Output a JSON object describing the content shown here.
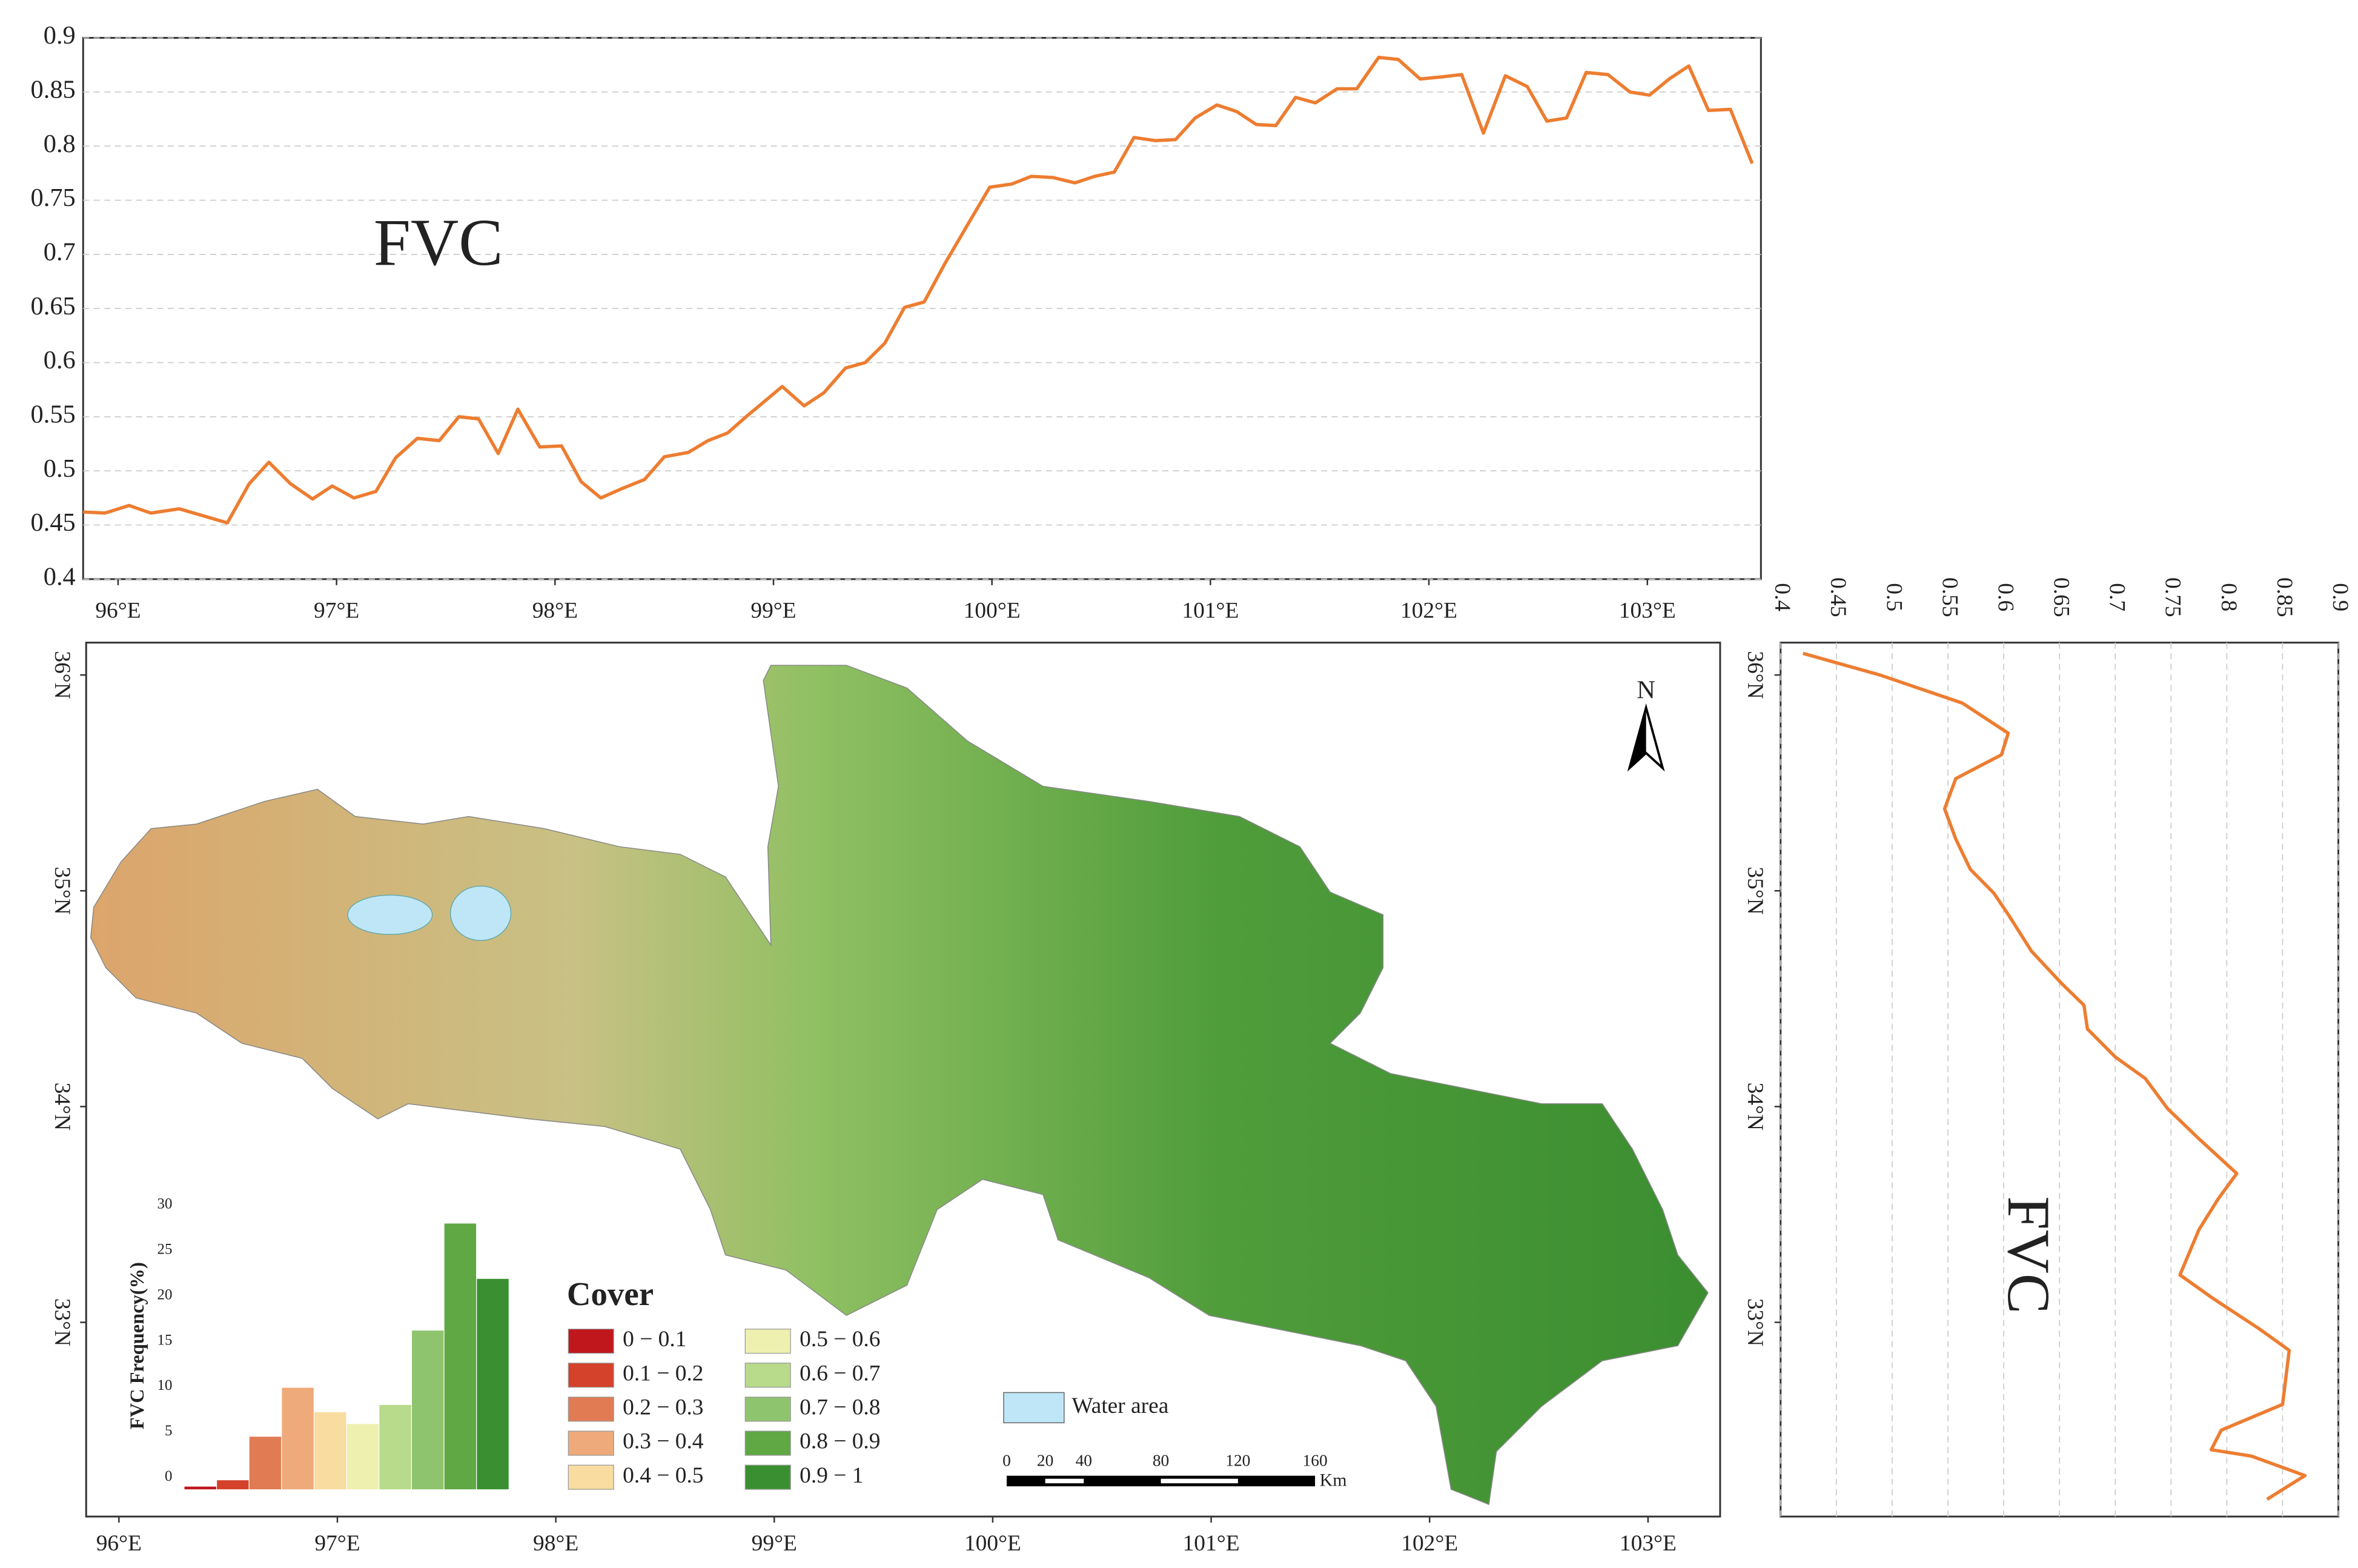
{
  "chart_data": [
    {
      "type": "line",
      "orientation": "horizontal",
      "annotation": "FVC",
      "color": "#ed7d31",
      "grid": true,
      "x": [
        95.84,
        95.94,
        96.05,
        96.15,
        96.28,
        96.5,
        96.6,
        96.69,
        96.79,
        96.89,
        96.98,
        97.08,
        97.18,
        97.27,
        97.37,
        97.47,
        97.56,
        97.65,
        97.74,
        97.83,
        97.93,
        98.03,
        98.12,
        98.21,
        98.31,
        98.41,
        98.5,
        98.61,
        98.7,
        98.79,
        98.88,
        98.97,
        99.04,
        99.14,
        99.23,
        99.33,
        99.42,
        99.51,
        99.6,
        99.69,
        99.78,
        99.89,
        99.99,
        100.09,
        100.18,
        100.28,
        100.38,
        100.47,
        100.56,
        100.65,
        100.75,
        100.84,
        100.93,
        101.03,
        101.12,
        101.21,
        101.3,
        101.39,
        101.48,
        101.58,
        101.67,
        101.77,
        101.86,
        101.96,
        102.06,
        102.15,
        102.25,
        102.35,
        102.45,
        102.54,
        102.63,
        102.72,
        102.82,
        102.92,
        103.01,
        103.1,
        103.19,
        103.28,
        103.38,
        103.48
      ],
      "values": [
        0.462,
        0.461,
        0.468,
        0.461,
        0.465,
        0.452,
        0.488,
        0.508,
        0.488,
        0.474,
        0.486,
        0.475,
        0.481,
        0.512,
        0.53,
        0.528,
        0.55,
        0.548,
        0.516,
        0.557,
        0.522,
        0.523,
        0.49,
        0.475,
        0.484,
        0.492,
        0.513,
        0.517,
        0.528,
        0.535,
        0.551,
        0.566,
        0.578,
        0.56,
        0.572,
        0.595,
        0.6,
        0.618,
        0.651,
        0.656,
        0.69,
        0.728,
        0.762,
        0.765,
        0.772,
        0.771,
        0.766,
        0.772,
        0.776,
        0.808,
        0.805,
        0.806,
        0.826,
        0.838,
        0.832,
        0.82,
        0.819,
        0.845,
        0.84,
        0.853,
        0.853,
        0.882,
        0.88,
        0.862,
        0.864,
        0.866,
        0.812,
        0.865,
        0.855,
        0.823,
        0.826,
        0.868,
        0.866,
        0.85,
        0.847,
        0.862,
        0.874,
        0.833,
        0.834,
        0.784
      ],
      "xlim": [
        95.84,
        103.52
      ],
      "xticks": [
        {
          "value": 96,
          "label": "96°E"
        },
        {
          "value": 97,
          "label": "97°E"
        },
        {
          "value": 98,
          "label": "98°E"
        },
        {
          "value": 99,
          "label": "99°E"
        },
        {
          "value": 100,
          "label": "100°E"
        },
        {
          "value": 101,
          "label": "101°E"
        },
        {
          "value": 102,
          "label": "102°E"
        },
        {
          "value": 103,
          "label": "103°E"
        }
      ],
      "ylim": [
        0.4,
        0.9
      ],
      "yticks": [
        0.4,
        0.45,
        0.5,
        0.55,
        0.6,
        0.65,
        0.7,
        0.75,
        0.8,
        0.85,
        0.9
      ]
    },
    {
      "type": "line",
      "orientation": "vertical",
      "annotation": "FVC",
      "color": "#ed7d31",
      "grid": true,
      "x": [
        36.1,
        36.0,
        35.87,
        35.73,
        35.63,
        35.52,
        35.38,
        35.24,
        35.1,
        34.99,
        34.89,
        34.72,
        34.57,
        34.47,
        34.36,
        34.23,
        34.13,
        33.99,
        33.85,
        33.69,
        33.57,
        33.43,
        33.22,
        33.11,
        32.97,
        32.87,
        32.62,
        32.5,
        32.41,
        32.38,
        32.29,
        32.18
      ],
      "values": [
        0.42,
        0.489,
        0.563,
        0.604,
        0.598,
        0.557,
        0.547,
        0.557,
        0.57,
        0.591,
        0.604,
        0.625,
        0.652,
        0.672,
        0.675,
        0.7,
        0.727,
        0.747,
        0.775,
        0.809,
        0.792,
        0.775,
        0.758,
        0.788,
        0.829,
        0.856,
        0.85,
        0.795,
        0.786,
        0.822,
        0.87,
        0.836
      ],
      "xlim": [
        32.1,
        36.15
      ],
      "xticks": [
        {
          "value": 36,
          "label": "36°N"
        },
        {
          "value": 35,
          "label": "35°N"
        },
        {
          "value": 34,
          "label": "34°N"
        },
        {
          "value": 33,
          "label": "33°N"
        }
      ],
      "ylim": [
        0.4,
        0.9
      ],
      "yticks": [
        0.4,
        0.45,
        0.5,
        0.55,
        0.6,
        0.65,
        0.7,
        0.75,
        0.8,
        0.85,
        0.9
      ]
    },
    {
      "type": "bar",
      "ylabel": "FVC Frequency(%)",
      "values": [
        0.3,
        1,
        5.8,
        11.2,
        8.5,
        7.2,
        9.3,
        17.5,
        29.3,
        23.2
      ],
      "colors": [
        "#c0171d",
        "#d4422b",
        "#e07b54",
        "#eeaa7a",
        "#f8dca0",
        "#eef0b0",
        "#b7da8b",
        "#8fc46e",
        "#5fa844",
        "#3a9030"
      ],
      "ylim": [
        0,
        30
      ],
      "yticks": [
        0,
        5,
        10,
        15,
        20,
        25,
        30
      ]
    }
  ],
  "map": {
    "xlim": [
      95.85,
      103.33
    ],
    "ylim": [
      32.1,
      36.15
    ],
    "xticks": [
      {
        "value": 96,
        "label": "96°E"
      },
      {
        "value": 97,
        "label": "97°E"
      },
      {
        "value": 98,
        "label": "98°E"
      },
      {
        "value": 99,
        "label": "99°E"
      },
      {
        "value": 100,
        "label": "100°E"
      },
      {
        "value": 101,
        "label": "101°E"
      },
      {
        "value": 102,
        "label": "102°E"
      },
      {
        "value": 103,
        "label": "103°E"
      }
    ],
    "yticks": [
      {
        "value": 36,
        "label": "36°N"
      },
      {
        "value": 35,
        "label": "35°N"
      },
      {
        "value": 34,
        "label": "34°N"
      },
      {
        "value": 33,
        "label": "33°N"
      }
    ],
    "north": "N",
    "legend_title": "Cover",
    "legend": [
      {
        "label": "0 − 0.1",
        "color": "#c0171d"
      },
      {
        "label": "0.1 − 0.2",
        "color": "#d4422b"
      },
      {
        "label": "0.2 − 0.3",
        "color": "#e07b54"
      },
      {
        "label": "0.3 − 0.4",
        "color": "#eeaa7a"
      },
      {
        "label": "0.4 − 0.5",
        "color": "#f8dca0"
      },
      {
        "label": "0.5 − 0.6",
        "color": "#eef0b0"
      },
      {
        "label": "0.6 − 0.7",
        "color": "#b7da8b"
      },
      {
        "label": "0.7 − 0.8",
        "color": "#8fc46e"
      },
      {
        "label": "0.8 − 0.9",
        "color": "#5fa844"
      },
      {
        "label": "0.9 − 1",
        "color": "#3a9030"
      }
    ],
    "water": {
      "label": "Water area",
      "color": "#bfe6f7"
    },
    "scale_bar": {
      "ticks": [
        0,
        20,
        40,
        80,
        120,
        160
      ],
      "unit": "Km"
    }
  }
}
